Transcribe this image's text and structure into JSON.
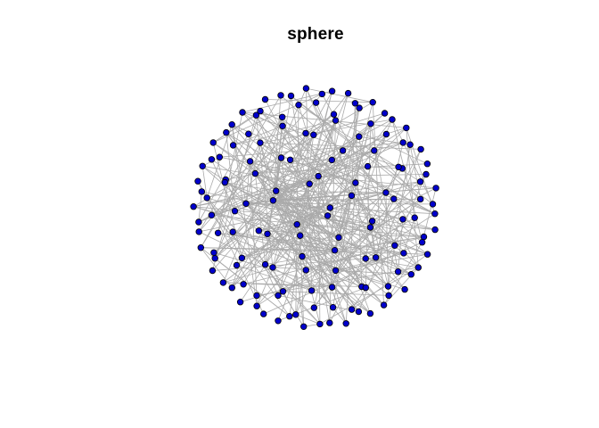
{
  "title": "sphere",
  "colors": {
    "background": "#ffffff",
    "edge": "#aaaaaa",
    "node_fill": "#0000cc",
    "node_stroke": "#000000"
  },
  "chart_data": {
    "type": "network",
    "layout": "sphere",
    "node_count": 140,
    "title": "sphere"
  }
}
